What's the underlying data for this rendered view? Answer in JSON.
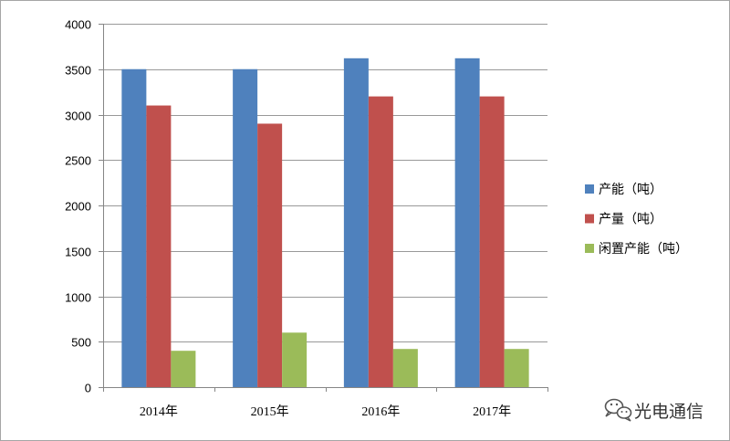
{
  "chart_data": {
    "type": "bar",
    "categories": [
      "2014年",
      "2015年",
      "2016年",
      "2017年"
    ],
    "series": [
      {
        "name": "产能（吨）",
        "values": [
          3500,
          3500,
          3620,
          3620
        ],
        "color": "#4F81BD"
      },
      {
        "name": "产量（吨）",
        "values": [
          3100,
          2900,
          3200,
          3200
        ],
        "color": "#C0504D"
      },
      {
        "name": "闲置产能（吨）",
        "values": [
          400,
          600,
          420,
          420
        ],
        "color": "#9BBB59"
      }
    ],
    "ylim": [
      0,
      4000
    ],
    "yticks": [
      0,
      500,
      1000,
      1500,
      2000,
      2500,
      3000,
      3500,
      4000
    ],
    "grid": true,
    "legend": "right"
  },
  "watermark": {
    "text": "光电通信",
    "icon": "wechat-icon"
  },
  "colors": {
    "gridline": "#999999",
    "axis": "#868686",
    "border": "#a6a6a6"
  }
}
